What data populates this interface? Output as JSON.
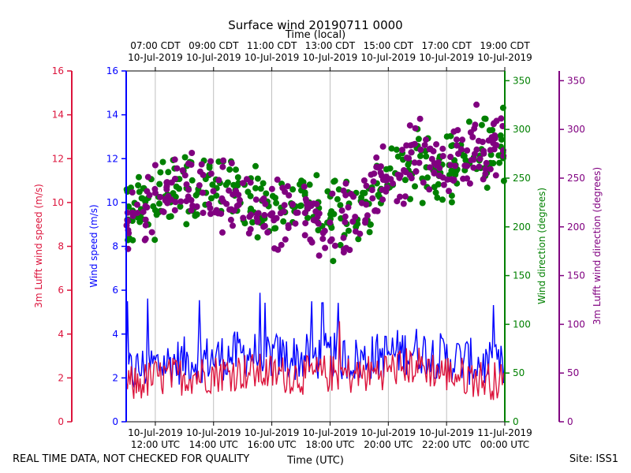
{
  "chart_data": {
    "type": "line+scatter",
    "title": "Surface wind 20190711 0000",
    "top_axis_label": "Time (local)",
    "xlabel": "Time (UTC)",
    "x_range_utc_hours": [
      11.0,
      24.0
    ],
    "bottom_ticks": [
      {
        "hour": 12,
        "date": "10-Jul-2019",
        "time": "12:00 UTC"
      },
      {
        "hour": 14,
        "date": "10-Jul-2019",
        "time": "14:00 UTC"
      },
      {
        "hour": 16,
        "date": "10-Jul-2019",
        "time": "16:00 UTC"
      },
      {
        "hour": 18,
        "date": "10-Jul-2019",
        "time": "18:00 UTC"
      },
      {
        "hour": 20,
        "date": "10-Jul-2019",
        "time": "20:00 UTC"
      },
      {
        "hour": 22,
        "date": "10-Jul-2019",
        "time": "22:00 UTC"
      },
      {
        "hour": 24,
        "date": "11-Jul-2019",
        "time": "00:00 UTC"
      }
    ],
    "top_ticks": [
      {
        "hour": 12,
        "time": "07:00 CDT",
        "date": "10-Jul-2019"
      },
      {
        "hour": 14,
        "time": "09:00 CDT",
        "date": "10-Jul-2019"
      },
      {
        "hour": 16,
        "time": "11:00 CDT",
        "date": "10-Jul-2019"
      },
      {
        "hour": 18,
        "time": "13:00 CDT",
        "date": "10-Jul-2019"
      },
      {
        "hour": 20,
        "time": "15:00 CDT",
        "date": "10-Jul-2019"
      },
      {
        "hour": 22,
        "time": "17:00 CDT",
        "date": "10-Jul-2019"
      },
      {
        "hour": 24,
        "time": "19:00 CDT",
        "date": "10-Jul-2019"
      }
    ],
    "axes": {
      "lufft_speed": {
        "label": "3m Lufft wind speed (m/s)",
        "range": [
          0,
          16
        ],
        "ticks": [
          0,
          2,
          4,
          6,
          8,
          10,
          12,
          14,
          16
        ],
        "color": "#dc143c"
      },
      "wind_speed": {
        "label": "Wind speed (m/s)",
        "range": [
          0,
          16
        ],
        "ticks": [
          0,
          2,
          4,
          6,
          8,
          10,
          12,
          14,
          16
        ],
        "color": "#0000ff"
      },
      "wind_direction": {
        "label": "Wind direction (degrees)",
        "range": [
          0,
          360
        ],
        "ticks": [
          0,
          50,
          100,
          150,
          200,
          250,
          300,
          350
        ],
        "color": "#008000"
      },
      "lufft_direction": {
        "label": "3m Lufft wind direction (degrees)",
        "range": [
          0,
          360
        ],
        "ticks": [
          0,
          50,
          100,
          150,
          200,
          250,
          300,
          350
        ],
        "color": "#800080"
      }
    },
    "series": [
      {
        "name": "Wind speed",
        "axis": "wind_speed",
        "style": "line",
        "color": "#0000ff",
        "hours": [
          11.0,
          12.0,
          13.0,
          14.0,
          15.0,
          16.0,
          17.0,
          18.0,
          19.0,
          20.0,
          21.0,
          22.0,
          23.0,
          24.0
        ],
        "values": [
          2.2,
          2.6,
          2.8,
          2.9,
          3.1,
          3.0,
          2.9,
          3.0,
          2.8,
          3.1,
          3.3,
          2.9,
          2.7,
          2.4
        ],
        "gust_peak": 5.9
      },
      {
        "name": "3m Lufft wind speed",
        "axis": "lufft_speed",
        "style": "line",
        "color": "#dc143c",
        "hours": [
          11.0,
          12.0,
          13.0,
          14.0,
          15.0,
          16.0,
          17.0,
          18.0,
          19.0,
          20.0,
          21.0,
          22.0,
          23.0,
          24.0
        ],
        "values": [
          1.6,
          2.0,
          2.1,
          2.2,
          2.3,
          2.2,
          2.1,
          2.2,
          2.1,
          2.4,
          2.6,
          2.2,
          2.0,
          1.8
        ],
        "gust_peak": 4.7
      },
      {
        "name": "Wind direction",
        "axis": "wind_direction",
        "style": "scatter",
        "color": "#008000",
        "hours": [
          11.0,
          12.0,
          13.0,
          14.0,
          15.0,
          16.0,
          17.0,
          18.0,
          19.0,
          20.0,
          21.0,
          22.0,
          23.0,
          24.0
        ],
        "values": [
          210,
          225,
          235,
          240,
          230,
          215,
          225,
          210,
          215,
          250,
          270,
          260,
          275,
          280
        ]
      },
      {
        "name": "3m Lufft wind direction",
        "axis": "lufft_direction",
        "style": "scatter",
        "color": "#800080",
        "hours": [
          11.0,
          12.0,
          13.0,
          14.0,
          15.0,
          16.0,
          17.0,
          18.0,
          19.0,
          20.0,
          21.0,
          22.0,
          23.0,
          24.0
        ],
        "values": [
          205,
          225,
          240,
          235,
          225,
          210,
          215,
          200,
          215,
          255,
          270,
          265,
          280,
          285
        ]
      }
    ]
  },
  "footer": {
    "left": "REAL TIME DATA, NOT CHECKED FOR QUALITY",
    "right": "Site: ISS1"
  }
}
